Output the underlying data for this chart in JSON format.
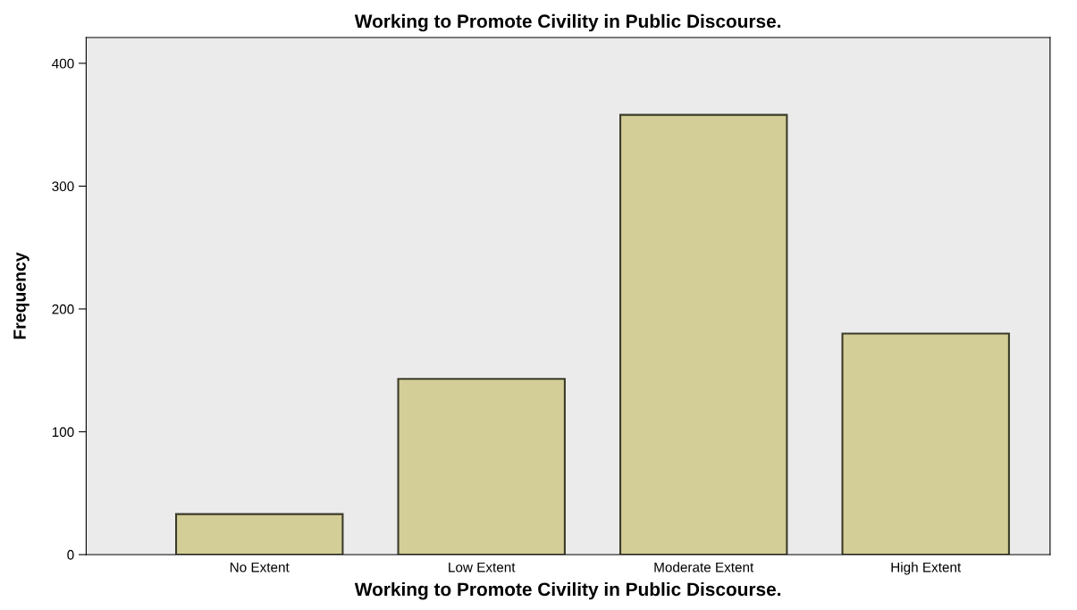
{
  "chart_data": {
    "type": "bar",
    "title": "Working to Promote Civility in Public Discourse.",
    "xlabel": "Working to Promote Civility in Public Discourse.",
    "ylabel": "Frequency",
    "categories": [
      "No Extent",
      "Low Extent",
      "Moderate Extent",
      "High Extent"
    ],
    "values": [
      33,
      143,
      358,
      180
    ],
    "color": "#d3ce97",
    "ylim": [
      0,
      421
    ],
    "yticks": [
      0,
      100,
      200,
      300,
      400
    ],
    "grid": false,
    "legend": false
  }
}
